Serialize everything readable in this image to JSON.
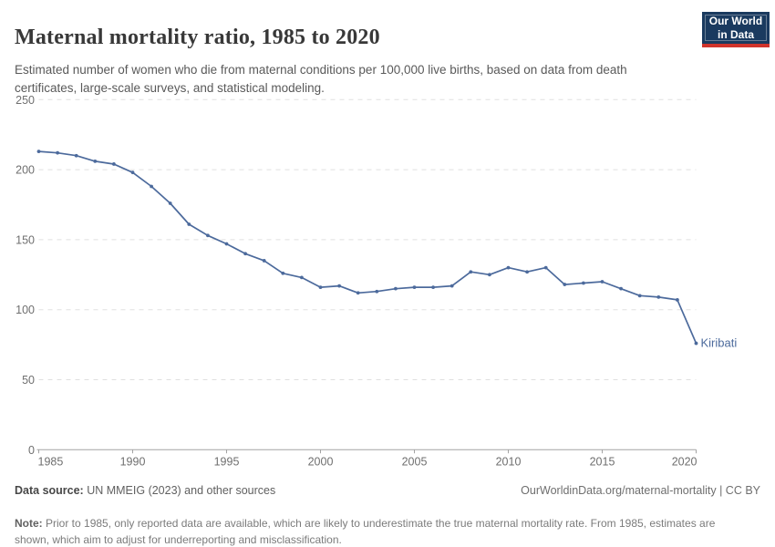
{
  "header": {
    "title": "Maternal mortality ratio, 1985 to 2020",
    "subtitle": "Estimated number of women who die from maternal conditions per 100,000 live births, based on data from death certificates, large-scale surveys, and statistical modeling.",
    "logo": {
      "line1": "Our World",
      "line2": "in Data"
    }
  },
  "chart_data": {
    "type": "line",
    "title": "Maternal mortality ratio, 1985 to 2020",
    "x": [
      1985,
      1986,
      1987,
      1988,
      1989,
      1990,
      1991,
      1992,
      1993,
      1994,
      1995,
      1996,
      1997,
      1998,
      1999,
      2000,
      2001,
      2002,
      2003,
      2004,
      2005,
      2006,
      2007,
      2008,
      2009,
      2010,
      2011,
      2012,
      2013,
      2014,
      2015,
      2016,
      2017,
      2018,
      2019,
      2020
    ],
    "series": [
      {
        "name": "Kiribati",
        "color": "#4c6a9c",
        "values": [
          213,
          212,
          210,
          206,
          204,
          198,
          188,
          176,
          161,
          153,
          147,
          140,
          135,
          126,
          123,
          116,
          117,
          112,
          113,
          115,
          116,
          116,
          117,
          127,
          125,
          130,
          127,
          130,
          118,
          119,
          120,
          115,
          110,
          109,
          107,
          76
        ]
      }
    ],
    "xlabel": "",
    "ylabel": "",
    "xlim": [
      1985,
      2020
    ],
    "ylim": [
      0,
      250
    ],
    "x_ticks": [
      1985,
      1990,
      1995,
      2000,
      2005,
      2010,
      2015,
      2020
    ],
    "y_ticks": [
      0,
      50,
      100,
      150,
      200,
      250
    ],
    "grid": "horizontal-dashed",
    "legend_position": "end-of-line-label",
    "end_label": "Kiribati",
    "marker": "circle"
  },
  "footer": {
    "datasource_label": "Data source:",
    "datasource_text": " UN MMEIG (2023) and other sources",
    "attribution": "OurWorldinData.org/maternal-mortality | CC BY",
    "note_label": "Note:",
    "note_text": " Prior to 1985, only reported data are available, which are likely to underestimate the true maternal mortality rate. From 1985, estimates are shown, which aim to adjust for underreporting and misclassification."
  },
  "colors": {
    "line": "#4c6a9c",
    "logo_navy": "#1a3a5f",
    "logo_red": "#d0342c",
    "grid": "#e0e0e0",
    "axis": "#a3a3a3",
    "tick_text": "#6f6f6f",
    "title_text": "#383838"
  }
}
